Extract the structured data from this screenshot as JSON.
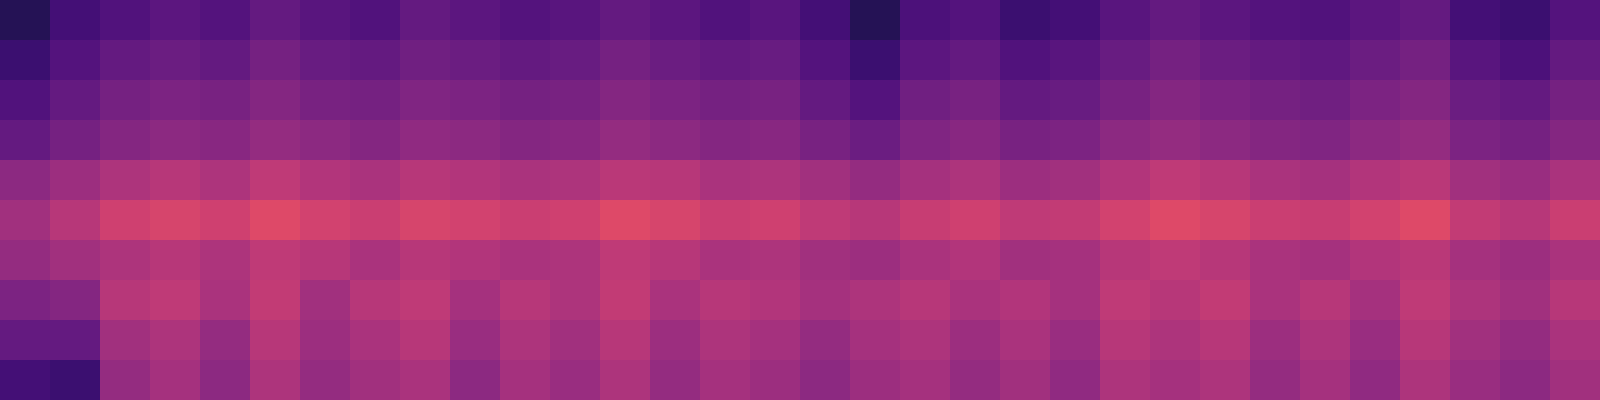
{
  "chart_data": {
    "type": "heatmap",
    "color": "magma",
    "tick_labels": false,
    "zlim": [
      0,
      1
    ],
    "cells": [
      [
        0.15,
        0.22,
        0.25,
        0.28,
        0.26,
        0.3,
        0.27,
        0.25,
        0.3,
        0.28,
        0.26,
        0.27,
        0.3,
        0.28,
        0.25,
        0.27,
        0.22,
        0.15,
        0.24,
        0.26,
        0.2,
        0.22,
        0.27,
        0.3,
        0.28,
        0.26,
        0.25,
        0.28,
        0.3,
        0.22,
        0.2,
        0.26
      ],
      [
        0.2,
        0.26,
        0.3,
        0.32,
        0.3,
        0.34,
        0.31,
        0.3,
        0.33,
        0.32,
        0.3,
        0.31,
        0.34,
        0.32,
        0.3,
        0.31,
        0.26,
        0.2,
        0.28,
        0.3,
        0.25,
        0.27,
        0.31,
        0.34,
        0.32,
        0.3,
        0.29,
        0.32,
        0.34,
        0.27,
        0.24,
        0.3
      ],
      [
        0.25,
        0.3,
        0.34,
        0.36,
        0.35,
        0.38,
        0.35,
        0.34,
        0.37,
        0.36,
        0.34,
        0.35,
        0.38,
        0.36,
        0.34,
        0.35,
        0.3,
        0.26,
        0.33,
        0.35,
        0.3,
        0.31,
        0.35,
        0.38,
        0.36,
        0.34,
        0.33,
        0.36,
        0.38,
        0.32,
        0.3,
        0.34
      ],
      [
        0.3,
        0.34,
        0.38,
        0.4,
        0.39,
        0.42,
        0.4,
        0.38,
        0.41,
        0.4,
        0.38,
        0.39,
        0.42,
        0.4,
        0.38,
        0.39,
        0.35,
        0.32,
        0.37,
        0.39,
        0.35,
        0.36,
        0.4,
        0.42,
        0.4,
        0.38,
        0.37,
        0.4,
        0.42,
        0.36,
        0.34,
        0.38
      ],
      [
        0.4,
        0.44,
        0.48,
        0.5,
        0.48,
        0.52,
        0.49,
        0.47,
        0.5,
        0.49,
        0.47,
        0.48,
        0.51,
        0.5,
        0.47,
        0.48,
        0.45,
        0.42,
        0.46,
        0.48,
        0.44,
        0.45,
        0.49,
        0.52,
        0.5,
        0.47,
        0.46,
        0.49,
        0.51,
        0.45,
        0.43,
        0.47
      ],
      [
        0.45,
        0.5,
        0.56,
        0.58,
        0.56,
        0.6,
        0.57,
        0.55,
        0.58,
        0.57,
        0.55,
        0.56,
        0.6,
        0.58,
        0.55,
        0.56,
        0.52,
        0.5,
        0.54,
        0.56,
        0.52,
        0.53,
        0.57,
        0.6,
        0.58,
        0.55,
        0.54,
        0.57,
        0.6,
        0.53,
        0.5,
        0.55
      ],
      [
        0.42,
        0.45,
        0.48,
        0.5,
        0.48,
        0.52,
        0.5,
        0.47,
        0.5,
        0.49,
        0.47,
        0.48,
        0.52,
        0.5,
        0.47,
        0.48,
        0.45,
        0.44,
        0.47,
        0.49,
        0.45,
        0.46,
        0.5,
        0.52,
        0.5,
        0.47,
        0.46,
        0.49,
        0.51,
        0.46,
        0.44,
        0.47
      ],
      [
        0.36,
        0.38,
        0.5,
        0.52,
        0.47,
        0.53,
        0.45,
        0.5,
        0.52,
        0.46,
        0.5,
        0.48,
        0.53,
        0.47,
        0.5,
        0.49,
        0.46,
        0.48,
        0.5,
        0.47,
        0.49,
        0.46,
        0.52,
        0.5,
        0.53,
        0.47,
        0.5,
        0.46,
        0.52,
        0.48,
        0.45,
        0.5
      ],
      [
        0.3,
        0.3,
        0.45,
        0.48,
        0.42,
        0.5,
        0.44,
        0.47,
        0.5,
        0.43,
        0.48,
        0.45,
        0.5,
        0.44,
        0.48,
        0.46,
        0.42,
        0.46,
        0.48,
        0.44,
        0.47,
        0.43,
        0.5,
        0.48,
        0.5,
        0.44,
        0.48,
        0.43,
        0.5,
        0.45,
        0.42,
        0.47
      ],
      [
        0.22,
        0.2,
        0.42,
        0.46,
        0.4,
        0.48,
        0.42,
        0.45,
        0.47,
        0.4,
        0.46,
        0.43,
        0.48,
        0.42,
        0.46,
        0.44,
        0.4,
        0.44,
        0.46,
        0.42,
        0.45,
        0.41,
        0.48,
        0.46,
        0.48,
        0.42,
        0.46,
        0.41,
        0.48,
        0.43,
        0.4,
        0.45
      ]
    ]
  }
}
